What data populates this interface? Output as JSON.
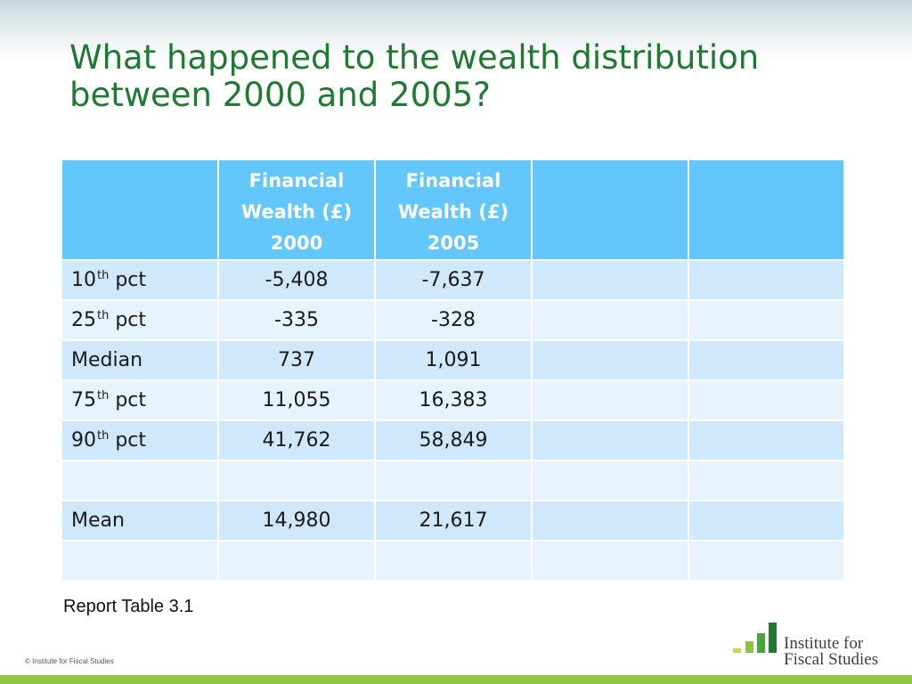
{
  "title": {
    "line1": "What happened to the wealth distribution",
    "line2": "between 2000 and 2005?"
  },
  "table": {
    "headers": [
      "",
      "Financial Wealth (£) 2000",
      "Financial Wealth (£) 2005",
      "",
      ""
    ],
    "rows": [
      {
        "label": "10",
        "suffix": "th",
        "rest": " pct",
        "v2000": "-5,408",
        "v2005": "-7,637"
      },
      {
        "label": "25",
        "suffix": "th",
        "rest": " pct",
        "v2000": "-335",
        "v2005": "-328"
      },
      {
        "label": "Median",
        "suffix": "",
        "rest": "",
        "v2000": "737",
        "v2005": "1,091"
      },
      {
        "label": "75",
        "suffix": "th",
        "rest": " pct",
        "v2000": "11,055",
        "v2005": "16,383"
      },
      {
        "label": "90",
        "suffix": "th",
        "rest": " pct",
        "v2000": "41,762",
        "v2005": "58,849"
      },
      {
        "label": "",
        "suffix": "",
        "rest": "",
        "v2000": "",
        "v2005": ""
      },
      {
        "label": "Mean",
        "suffix": "",
        "rest": "",
        "v2000": "14,980",
        "v2005": "21,617"
      },
      {
        "label": "",
        "suffix": "",
        "rest": "",
        "v2000": "",
        "v2005": ""
      }
    ]
  },
  "source": "Report Table 3.1",
  "copyright": "© Institute for Fiscal Studies",
  "logo": {
    "line1": "Institute for",
    "line2": "Fiscal Studies",
    "bar_colors": [
      "#c8d84a",
      "#8ec63f",
      "#4aa540",
      "#1e7a31"
    ]
  },
  "colors": {
    "title": "#1e7a31",
    "header_bg": "#63c7fc",
    "row_dark": "#cfe8fb",
    "row_light": "#e6f3fd",
    "bottom_bar": "#8ec63f"
  }
}
